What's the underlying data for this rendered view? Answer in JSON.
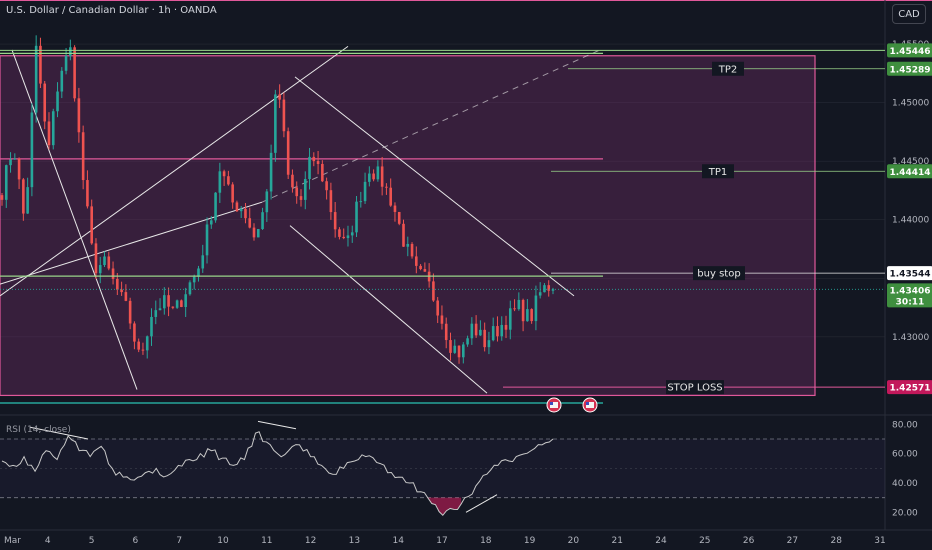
{
  "header": {
    "symbol_title": "U.S. Dollar / Canadian Dollar · 1h · OANDA"
  },
  "currency_button": "CAD",
  "colors": {
    "bg": "#131722",
    "up": "#26a69a",
    "down": "#ef5350",
    "box": "#7a2e6e",
    "pink": "#e0589a",
    "green_line": "#9ad68a",
    "teal": "#26a69a",
    "white": "#e8e8e8",
    "tag_green": "#3f8f3f",
    "tag_red": "#c2185b",
    "rsi": "#c8c8c8",
    "grid": "#2a2e39"
  },
  "chart_data": [
    {
      "type": "candlestick",
      "title": "U.S. Dollar / Canadian Dollar · 1h · OANDA",
      "ylim": [
        1.4235,
        1.4562
      ],
      "y_ticks": [
        1.43,
        1.435,
        1.44,
        1.445,
        1.45,
        1.455
      ],
      "y_tick_labels": [
        "1.43000",
        "",
        "1.44000",
        "1.44500",
        "1.45000",
        "1.45500"
      ],
      "x_tick_labels": [
        "Mar",
        "4",
        "5",
        "6",
        "7",
        "10",
        "11",
        "12",
        "13",
        "14",
        "17",
        "18",
        "19",
        "20",
        "21",
        "24",
        "25",
        "26",
        "27",
        "28",
        "31"
      ],
      "current_price": {
        "value": 1.43406,
        "label": "1.43406",
        "countdown": "30:11"
      },
      "levels": [
        {
          "name": "TP2",
          "label": "TP2",
          "value": 1.45289,
          "tag": "1.45289"
        },
        {
          "name": "TP1",
          "label": "TP1",
          "value": 1.44414,
          "tag": "1.44414"
        },
        {
          "name": "buy stop",
          "label": "buy stop",
          "value": 1.43544,
          "tag": "1.43544"
        },
        {
          "name": "STOP LOSS",
          "label": "STOP LOSS",
          "value": 1.42571,
          "tag": "1.42571"
        },
        {
          "name": "range top",
          "label": "",
          "value": 1.45446,
          "tag": "1.45446"
        }
      ],
      "path": [
        1.4425,
        1.4465,
        1.4395,
        1.4548,
        1.4455,
        1.4525,
        1.4545,
        1.444,
        1.436,
        1.4362,
        1.434,
        1.432,
        1.428,
        1.432,
        1.433,
        1.432,
        1.434,
        1.4355,
        1.4395,
        1.4445,
        1.4415,
        1.441,
        1.4385,
        1.4415,
        1.452,
        1.443,
        1.4415,
        1.4455,
        1.4435,
        1.4395,
        1.4375,
        1.4415,
        1.4445,
        1.4435,
        1.4415,
        1.4382,
        1.4355,
        1.4348,
        1.4325,
        1.4295,
        1.4285,
        1.431,
        1.4295,
        1.4305,
        1.4315,
        1.4325,
        1.4315,
        1.434,
        1.4345
      ]
    },
    {
      "type": "line",
      "title": "RSI (14, close)",
      "ylim": [
        10,
        85
      ],
      "y_ticks": [
        20,
        40,
        60,
        80
      ],
      "y_tick_labels": [
        "20.00",
        "40.00",
        "60.00",
        "80.00"
      ],
      "dashed_levels": [
        30,
        70
      ],
      "values": [
        55,
        52,
        58,
        48,
        62,
        56,
        72,
        62,
        58,
        65,
        50,
        44,
        42,
        47,
        50,
        45,
        52,
        56,
        60,
        62,
        57,
        52,
        56,
        74,
        68,
        60,
        62,
        66,
        58,
        52,
        46,
        50,
        55,
        58,
        54,
        47,
        44,
        40,
        34,
        26,
        18,
        22,
        30,
        38,
        46,
        52,
        55,
        59,
        62,
        66,
        70
      ]
    }
  ]
}
